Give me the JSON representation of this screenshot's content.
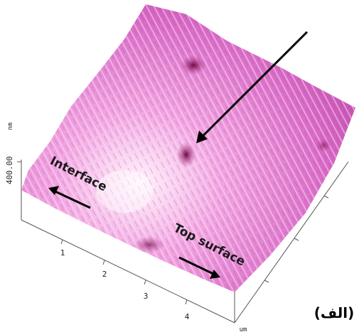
{
  "image": {
    "z_unit": "nm",
    "z_tick": "400.00",
    "x_ticks": [
      "1",
      "2",
      "3",
      "4"
    ],
    "x_unit": "um",
    "annotations": [
      "Interface",
      "Top surface"
    ],
    "panel_label": "(الف)"
  }
}
